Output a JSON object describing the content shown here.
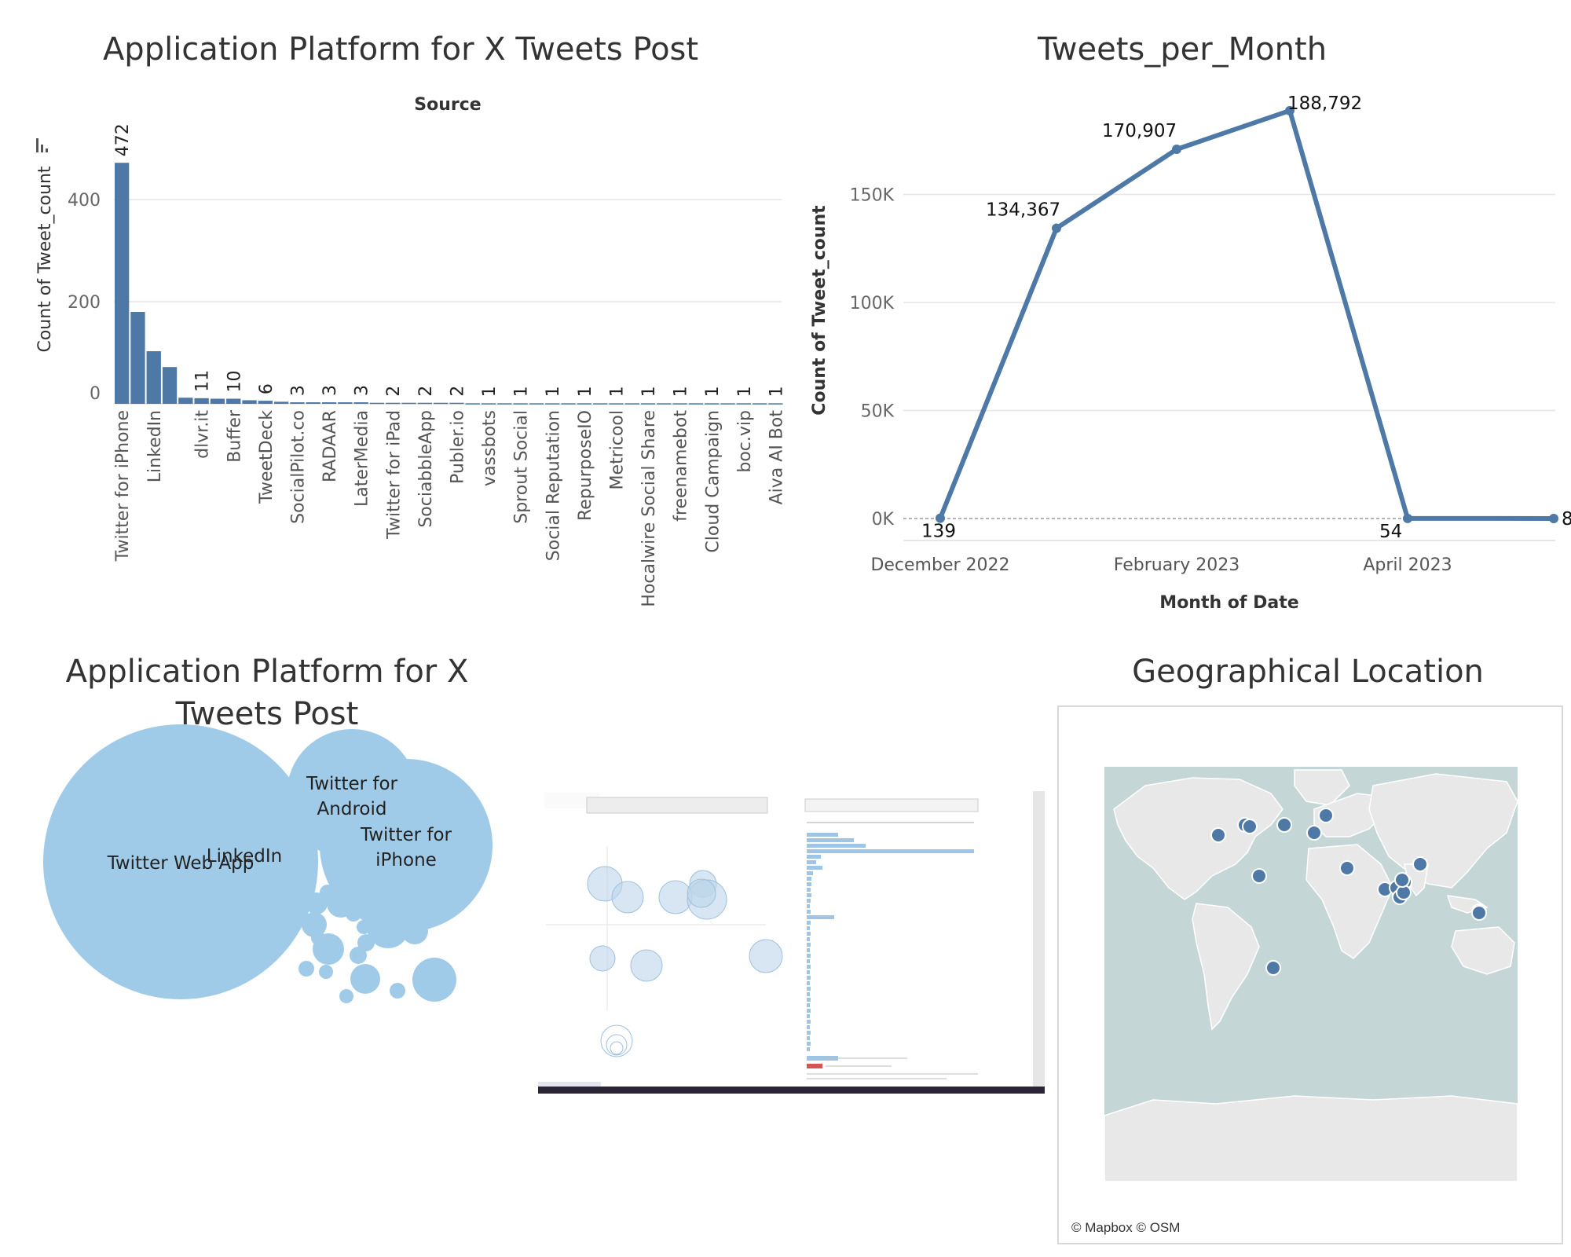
{
  "colors": {
    "bar": "#4e79a7",
    "line": "#4e79a7",
    "bubble": "#a0cbe8",
    "map_water": "#c4d6d6",
    "map_land": "#e8e8e8",
    "map_dot": "#4e79a7",
    "grid": "#e6e6e6"
  },
  "source_chart": {
    "title": "Application Platform for X Tweets Post",
    "header": "Source",
    "ylabel": "Count of Tweet_count",
    "sort_icon": "sort-descending-icon"
  },
  "month_chart": {
    "title": "Tweets_per_Month",
    "xlabel": "Month of Date",
    "ylabel": "Count of Tweet_count"
  },
  "bubble_chart": {
    "title_line1": "Application Platform for X",
    "title_line2": "Tweets Post"
  },
  "map_panel": {
    "title": "Geographical Location",
    "credit": "© Mapbox © OSM"
  },
  "chart_data": [
    {
      "type": "bar",
      "title": "Application Platform for X Tweets Post",
      "header": "Source",
      "ylabel": "Count of Tweet_count",
      "xlabel": "",
      "ylim": [
        0,
        560
      ],
      "yticks": [
        0,
        200,
        400
      ],
      "grid": true,
      "categories": [
        "Twitter for iPhone",
        "",
        "LinkedIn",
        "",
        "",
        "dlvr.it",
        "",
        "Buffer",
        "",
        "TweetDeck",
        "",
        "SocialPilot.co",
        "",
        "RADAAR",
        "",
        "LaterMedia",
        "",
        "Twitter for iPad",
        "",
        "SociabbleApp",
        "",
        "Publer.io",
        "",
        "vassbots",
        "",
        "Sprout Social",
        "",
        "Social Reputation",
        "",
        "RepurposeIO",
        "",
        "Metricool",
        "",
        "Hocalwire Social Share",
        "",
        "freenamebot",
        "",
        "Cloud Campaign",
        "",
        "boc.vip",
        "",
        "Aiva AI Bot"
      ],
      "values": [
        472,
        180,
        103,
        72,
        12,
        11,
        10,
        10,
        7,
        6,
        4,
        3,
        3,
        3,
        3,
        3,
        2,
        2,
        2,
        2,
        2,
        2,
        1,
        1,
        1,
        1,
        1,
        1,
        1,
        1,
        1,
        1,
        1,
        1,
        1,
        1,
        1,
        1,
        1,
        1,
        1,
        1
      ],
      "data_labels": [
        "472",
        "",
        "",
        "",
        "",
        "11",
        "",
        "10",
        "",
        "6",
        "",
        "3",
        "",
        "3",
        "",
        "3",
        "",
        "2",
        "",
        "2",
        "",
        "2",
        "",
        "1",
        "",
        "1",
        "",
        "1",
        "",
        "1",
        "",
        "1",
        "",
        "1",
        "",
        "1",
        "",
        "1",
        "",
        "1",
        "",
        "1"
      ]
    },
    {
      "type": "line",
      "title": "Tweets_per_Month",
      "xlabel": "Month of Date",
      "ylabel": "Count of Tweet_count",
      "x": [
        "2022-12",
        "2023-01",
        "2023-02",
        "2023-03",
        "2023-04",
        "2023-05"
      ],
      "values": [
        139,
        134367,
        170907,
        188792,
        54,
        8
      ],
      "data_labels": [
        "139",
        "134,367",
        "170,907",
        "188,792",
        "54",
        "8"
      ],
      "xticks": [
        {
          "x": "2022-12",
          "label": "December 2022"
        },
        {
          "x": "2023-02",
          "label": "February 2023"
        },
        {
          "x": "2023-04",
          "label": "April 2023"
        }
      ],
      "yticks": [
        {
          "value": 0,
          "label": "0K"
        },
        {
          "value": 50000,
          "label": "50K"
        },
        {
          "value": 100000,
          "label": "100K"
        },
        {
          "value": 150000,
          "label": "150K"
        }
      ],
      "ylim": [
        0,
        200000
      ],
      "grid": true
    },
    {
      "type": "bubble",
      "title": "Application Platform for X Tweets Post",
      "bubbles": [
        {
          "label": "Twitter Web App",
          "value": 1000
        },
        {
          "label": "Twitter for iPhone",
          "value": 370
        },
        {
          "label": "Twitter for Android",
          "value": 220
        },
        {
          "label": "LinkedIn",
          "value": 200
        },
        {
          "label": "",
          "value": 26
        },
        {
          "label": "",
          "value": 25
        },
        {
          "label": "",
          "value": 19
        },
        {
          "label": "",
          "value": 17
        },
        {
          "label": "",
          "value": 13
        },
        {
          "label": "",
          "value": 12
        },
        {
          "label": "",
          "value": 11
        },
        {
          "label": "",
          "value": 10
        },
        {
          "label": "",
          "value": 9
        },
        {
          "label": "",
          "value": 7
        },
        {
          "label": "",
          "value": 6
        },
        {
          "label": "",
          "value": 6
        },
        {
          "label": "",
          "value": 5
        },
        {
          "label": "",
          "value": 5
        },
        {
          "label": "",
          "value": 4
        },
        {
          "label": "",
          "value": 4
        },
        {
          "label": "",
          "value": 3
        },
        {
          "label": "",
          "value": 3
        },
        {
          "label": "",
          "value": 3
        },
        {
          "label": "",
          "value": 3
        },
        {
          "label": "",
          "value": 2
        },
        {
          "label": "",
          "value": 2
        },
        {
          "label": "",
          "value": 2
        },
        {
          "label": "",
          "value": 2
        },
        {
          "label": "",
          "value": 2
        },
        {
          "label": "",
          "value": 2
        }
      ]
    }
  ]
}
